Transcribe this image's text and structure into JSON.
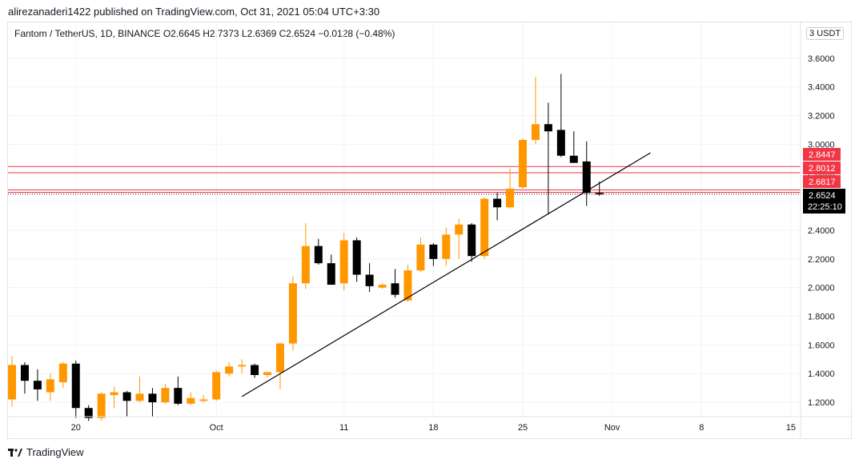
{
  "header": {
    "publish_line": "alirezanaderi1422 published on TradingView.com, Oct 31, 2021 05:04 UTC+3:30",
    "symbol_line": "Fantom / TetherUS, 1D, BINANCE  O2.6645  H2.7373  L2.6369  C2.6524  −0.0128 (−0.48%)",
    "unit_label": "USDT",
    "unit_prefix": "3"
  },
  "footer": {
    "brand": "TradingView",
    "brand_icon": "tradingview-logo-icon"
  },
  "colors": {
    "up": "#ff9800",
    "down": "#000000",
    "wick": "#000000",
    "grid": "#f0f3fa",
    "line": "#000000",
    "level": "#f23645",
    "price_tag": "#000000",
    "bg": "#ffffff"
  },
  "chart_data": {
    "type": "candlestick",
    "title": "Fantom / TetherUS, 1D, BINANCE",
    "ylim": [
      1.1,
      3.85
    ],
    "x_ticks": [
      {
        "index": 5,
        "label": "20"
      },
      {
        "index": 16,
        "label": "Oct"
      },
      {
        "index": 26,
        "label": "11"
      },
      {
        "index": 33,
        "label": "18"
      },
      {
        "index": 40,
        "label": "25"
      },
      {
        "index": 47,
        "label": "Nov"
      },
      {
        "index": 54,
        "label": "8"
      },
      {
        "index": 61,
        "label": "15"
      }
    ],
    "y_ticks": [
      "1.2000",
      "1.4000",
      "1.6000",
      "1.8000",
      "2.0000",
      "2.2000",
      "2.4000",
      "2.6000",
      "2.8000",
      "3.0000",
      "3.2000",
      "3.4000",
      "3.6000"
    ],
    "candles": [
      {
        "o": 1.22,
        "h": 1.52,
        "l": 1.17,
        "c": 1.46
      },
      {
        "o": 1.46,
        "h": 1.48,
        "l": 1.26,
        "c": 1.35
      },
      {
        "o": 1.35,
        "h": 1.43,
        "l": 1.21,
        "c": 1.29
      },
      {
        "o": 1.27,
        "h": 1.4,
        "l": 1.21,
        "c": 1.36
      },
      {
        "o": 1.34,
        "h": 1.48,
        "l": 1.3,
        "c": 1.47
      },
      {
        "o": 1.47,
        "h": 1.49,
        "l": 1.09,
        "c": 1.16
      },
      {
        "o": 1.16,
        "h": 1.18,
        "l": 1.07,
        "c": 1.09
      },
      {
        "o": 1.09,
        "h": 1.27,
        "l": 1.07,
        "c": 1.26
      },
      {
        "o": 1.25,
        "h": 1.31,
        "l": 1.16,
        "c": 1.27
      },
      {
        "o": 1.27,
        "h": 1.28,
        "l": 1.1,
        "c": 1.21
      },
      {
        "o": 1.21,
        "h": 1.38,
        "l": 1.2,
        "c": 1.26
      },
      {
        "o": 1.26,
        "h": 1.3,
        "l": 1.1,
        "c": 1.2
      },
      {
        "o": 1.2,
        "h": 1.33,
        "l": 1.19,
        "c": 1.3
      },
      {
        "o": 1.3,
        "h": 1.38,
        "l": 1.18,
        "c": 1.19
      },
      {
        "o": 1.19,
        "h": 1.27,
        "l": 1.18,
        "c": 1.23
      },
      {
        "o": 1.21,
        "h": 1.25,
        "l": 1.2,
        "c": 1.22
      },
      {
        "o": 1.22,
        "h": 1.42,
        "l": 1.21,
        "c": 1.41
      },
      {
        "o": 1.4,
        "h": 1.48,
        "l": 1.38,
        "c": 1.45
      },
      {
        "o": 1.45,
        "h": 1.5,
        "l": 1.4,
        "c": 1.46
      },
      {
        "o": 1.46,
        "h": 1.47,
        "l": 1.37,
        "c": 1.39
      },
      {
        "o": 1.39,
        "h": 1.41,
        "l": 1.37,
        "c": 1.41
      },
      {
        "o": 1.41,
        "h": 1.62,
        "l": 1.29,
        "c": 1.61
      },
      {
        "o": 1.61,
        "h": 2.08,
        "l": 1.56,
        "c": 2.03
      },
      {
        "o": 2.03,
        "h": 2.45,
        "l": 1.99,
        "c": 2.29
      },
      {
        "o": 2.29,
        "h": 2.34,
        "l": 2.16,
        "c": 2.17
      },
      {
        "o": 2.17,
        "h": 2.23,
        "l": 2.02,
        "c": 2.02
      },
      {
        "o": 2.03,
        "h": 2.38,
        "l": 1.98,
        "c": 2.33
      },
      {
        "o": 2.33,
        "h": 2.35,
        "l": 2.04,
        "c": 2.09
      },
      {
        "o": 2.09,
        "h": 2.17,
        "l": 1.97,
        "c": 2.01
      },
      {
        "o": 2.0,
        "h": 2.03,
        "l": 1.99,
        "c": 2.02
      },
      {
        "o": 2.03,
        "h": 2.13,
        "l": 1.93,
        "c": 1.95
      },
      {
        "o": 1.91,
        "h": 2.16,
        "l": 1.9,
        "c": 2.12
      },
      {
        "o": 2.12,
        "h": 2.35,
        "l": 2.11,
        "c": 2.3
      },
      {
        "o": 2.3,
        "h": 2.31,
        "l": 2.15,
        "c": 2.2
      },
      {
        "o": 2.2,
        "h": 2.42,
        "l": 2.15,
        "c": 2.37
      },
      {
        "o": 2.37,
        "h": 2.48,
        "l": 2.2,
        "c": 2.44
      },
      {
        "o": 2.44,
        "h": 2.45,
        "l": 2.18,
        "c": 2.22
      },
      {
        "o": 2.22,
        "h": 2.63,
        "l": 2.2,
        "c": 2.62
      },
      {
        "o": 2.62,
        "h": 2.66,
        "l": 2.47,
        "c": 2.56
      },
      {
        "o": 2.56,
        "h": 2.83,
        "l": 2.55,
        "c": 2.69
      },
      {
        "o": 2.7,
        "h": 3.04,
        "l": 2.69,
        "c": 3.03
      },
      {
        "o": 3.03,
        "h": 3.47,
        "l": 3.0,
        "c": 3.14
      },
      {
        "o": 3.14,
        "h": 3.29,
        "l": 2.51,
        "c": 3.09
      },
      {
        "o": 3.1,
        "h": 3.49,
        "l": 2.91,
        "c": 2.92
      },
      {
        "o": 2.92,
        "h": 3.09,
        "l": 2.87,
        "c": 2.87
      },
      {
        "o": 2.88,
        "h": 3.02,
        "l": 2.57,
        "c": 2.66
      },
      {
        "o": 2.66,
        "h": 2.74,
        "l": 2.64,
        "c": 2.65
      }
    ],
    "trendline": {
      "from": {
        "index": 18,
        "value": 1.24
      },
      "to": {
        "index": 50,
        "value": 2.94
      }
    },
    "horizontal_levels": [
      2.8447,
      2.8012,
      2.6817,
      2.6645,
      2.6524
    ],
    "price_labels": [
      "2.8447",
      "2.8012",
      "2.6817"
    ],
    "last_price": {
      "value": 2.6524,
      "label": "2.6524",
      "countdown": "22:25:10"
    }
  }
}
